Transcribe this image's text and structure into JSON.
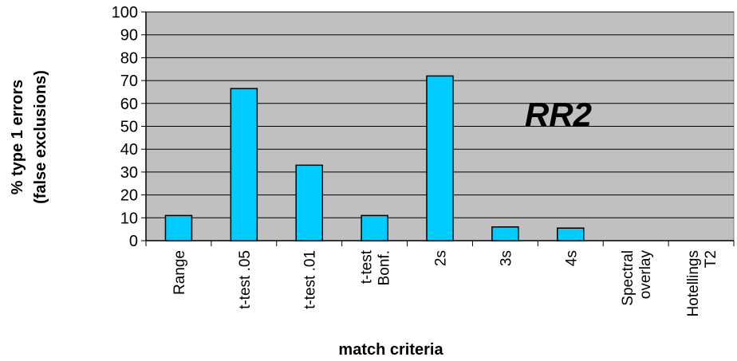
{
  "chart_data": {
    "type": "bar",
    "title": "",
    "annotation": "RR2",
    "xlabel": "match criteria",
    "ylabel": [
      "% type 1 errors",
      "(false exclusions)"
    ],
    "ylim": [
      0,
      100
    ],
    "yticks": [
      0,
      10,
      20,
      30,
      40,
      50,
      60,
      70,
      80,
      90,
      100
    ],
    "grid": true,
    "categories": [
      [
        "Range"
      ],
      [
        "t-test .05"
      ],
      [
        "t-test .01"
      ],
      [
        "t-test",
        "Bonf."
      ],
      [
        "2s"
      ],
      [
        "3s"
      ],
      [
        "4s"
      ],
      [
        "Spectral",
        "overlay"
      ],
      [
        "Hotellings",
        "T2"
      ]
    ],
    "values": [
      11,
      66.5,
      33,
      11,
      72,
      6,
      5.5,
      0,
      0
    ],
    "colors": {
      "plot_background": "#C0C0C0",
      "bar_fill": "#00CCFF",
      "bar_stroke": "#000000",
      "gridline": "#000000"
    }
  }
}
